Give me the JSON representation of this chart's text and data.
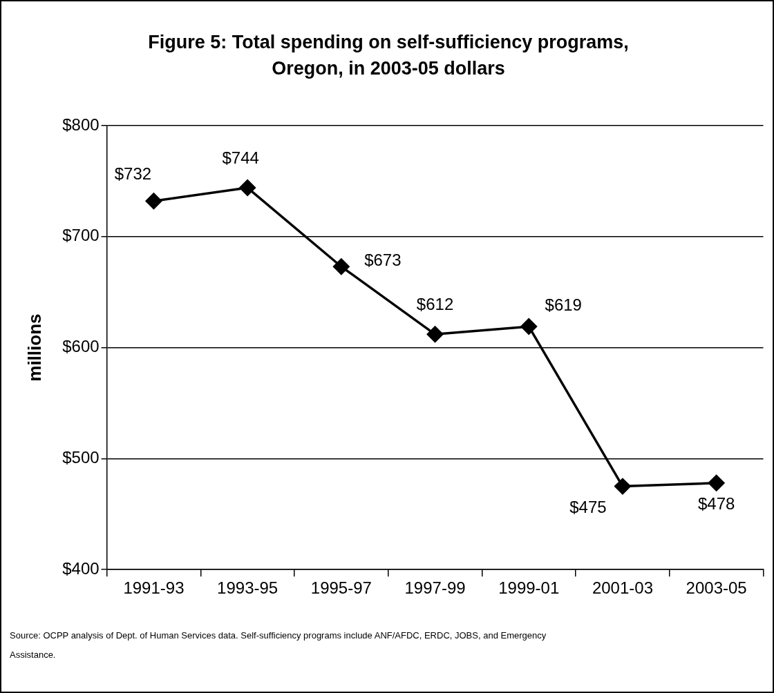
{
  "chart_data": {
    "type": "line",
    "title": "Figure 5: Total spending on self-sufficiency programs, Oregon, in 2003-05 dollars",
    "ylabel": "millions",
    "categories": [
      "1991-93",
      "1993-95",
      "1995-97",
      "1997-99",
      "1999-01",
      "2001-03",
      "2003-05"
    ],
    "series": [
      {
        "color": "#000000",
        "values": [
          732,
          744,
          673,
          612,
          619,
          475,
          478
        ],
        "value_labels": [
          "$732",
          "$744",
          "$673",
          "$612",
          "$619",
          "$475",
          "$478"
        ]
      }
    ],
    "ylim": [
      400,
      800
    ],
    "yticks": [
      {
        "value": 400,
        "label": "$400"
      },
      {
        "value": 500,
        "label": "$500"
      },
      {
        "value": 600,
        "label": "$600"
      },
      {
        "value": 700,
        "label": "$700"
      },
      {
        "value": 800,
        "label": "$800"
      }
    ],
    "grid": "y",
    "legend": false,
    "marker": "diamond",
    "line_style": "solid",
    "annotations": [
      "Source: OCPP analysis of Dept. of Human Services data. Self-sufficiency programs include ANF/AFDC, ERDC, JOBS, and Emergency Assistance."
    ]
  }
}
